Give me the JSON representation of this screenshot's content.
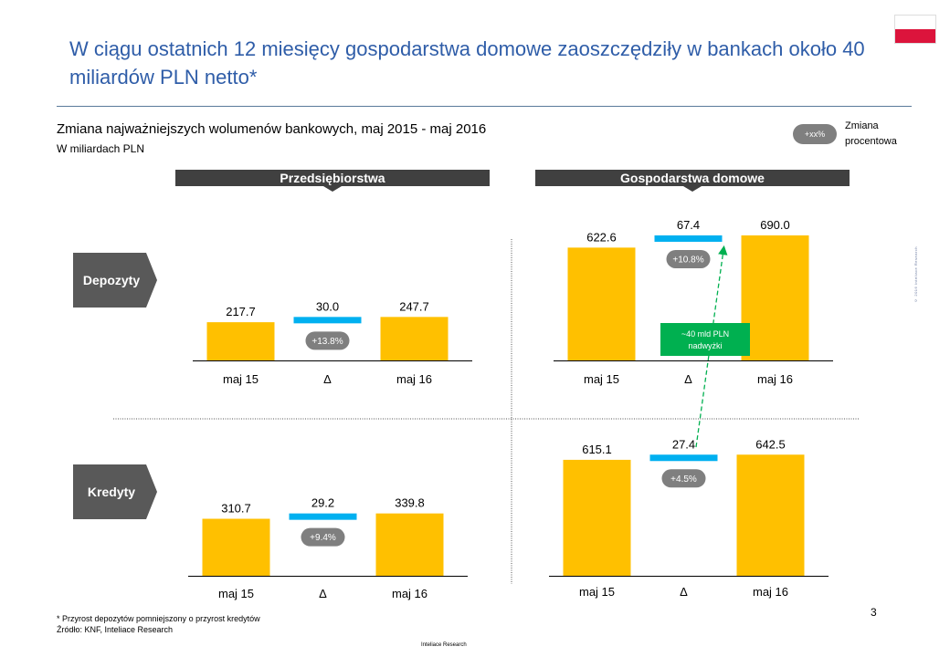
{
  "title": "W ciągu ostatnich 12 miesięcy gospodarstwa domowe zaoszczędziły w bankach około 40 miliardów PLN netto*",
  "subtitle": "Zmiana najważniejszych wolumenów bankowych, maj 2015 - maj 2016",
  "units": "W miliardach PLN",
  "legend": {
    "pill": "+xx%",
    "label": "Zmiana procentowa"
  },
  "columns": [
    "Przedsiębiorstwa",
    "Gospodarstwa domowe"
  ],
  "rows": [
    "Depozyty",
    "Kredyty"
  ],
  "annotation": "~40 mld PLN nadwyżki",
  "footnote": "* Przyrost depozytów pomniejszony o przyrost kredytów",
  "source": "Źródło: KNF, Inteliace Research",
  "page_number": "3",
  "bottom_credit": "Inteliace Research",
  "side_text": "© 2016 Inteliace Research",
  "colors": {
    "title": "#2F5DA8",
    "bar": "#FFC000",
    "delta": "#00B0F0",
    "pill": "#7F7F7F",
    "header": "#404040",
    "annotation": "#00B050",
    "flag_red": "#DC143C"
  },
  "chart_data": [
    {
      "type": "bar",
      "title": "Przedsiębiorstwa — Depozyty",
      "categories": [
        "maj 15",
        "Δ",
        "maj 16"
      ],
      "values": [
        217.7,
        30.0,
        247.7
      ],
      "labels": [
        "217.7",
        "30.0",
        "247.7"
      ],
      "change": "+13.8%"
    },
    {
      "type": "bar",
      "title": "Gospodarstwa domowe — Depozyty",
      "categories": [
        "maj 15",
        "Δ",
        "maj 16"
      ],
      "values": [
        622.6,
        67.4,
        690.0
      ],
      "labels": [
        "622.6",
        "67.4",
        "690.0"
      ],
      "change": "+10.8%"
    },
    {
      "type": "bar",
      "title": "Przedsiębiorstwa — Kredyty",
      "categories": [
        "maj 15",
        "Δ",
        "maj 16"
      ],
      "values": [
        310.7,
        29.2,
        339.8
      ],
      "labels": [
        "310.7",
        "29.2",
        "339.8"
      ],
      "change": "+9.4%"
    },
    {
      "type": "bar",
      "title": "Gospodarstwa domowe — Kredyty",
      "categories": [
        "maj 15",
        "Δ",
        "maj 16"
      ],
      "values": [
        615.1,
        27.4,
        642.5
      ],
      "labels": [
        "615.1",
        "27.4",
        "642.5"
      ],
      "change": "+4.5%"
    }
  ]
}
